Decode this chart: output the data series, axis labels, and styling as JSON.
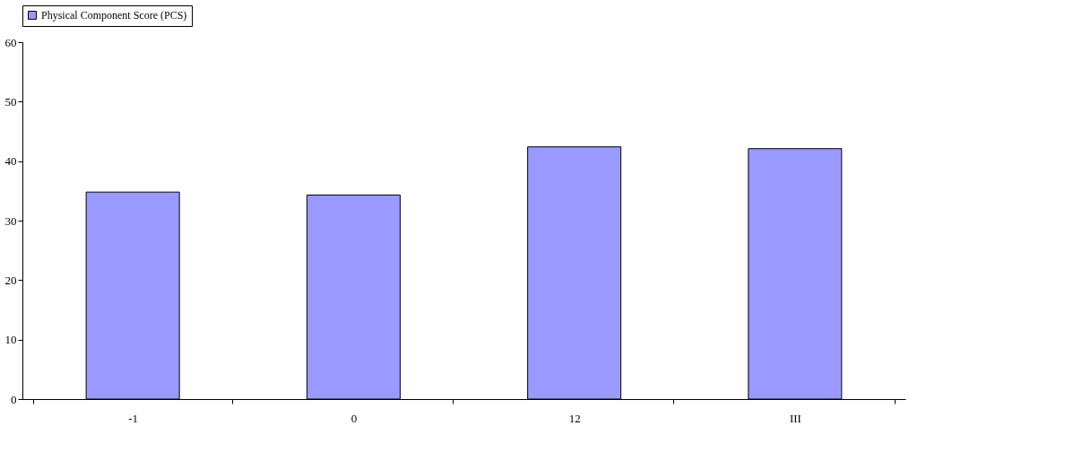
{
  "chart_data": {
    "type": "bar",
    "categories": [
      "-1",
      "0",
      "12",
      "III"
    ],
    "series": [
      {
        "name": "Physical Component Score (PCS)",
        "color": "#9999ff",
        "values": [
          34.8,
          34.3,
          42.4,
          42.1
        ]
      }
    ],
    "ylim": [
      0,
      60
    ],
    "yticks": [
      0,
      10,
      20,
      30,
      40,
      50,
      60
    ],
    "grid": false,
    "legend": "top"
  }
}
